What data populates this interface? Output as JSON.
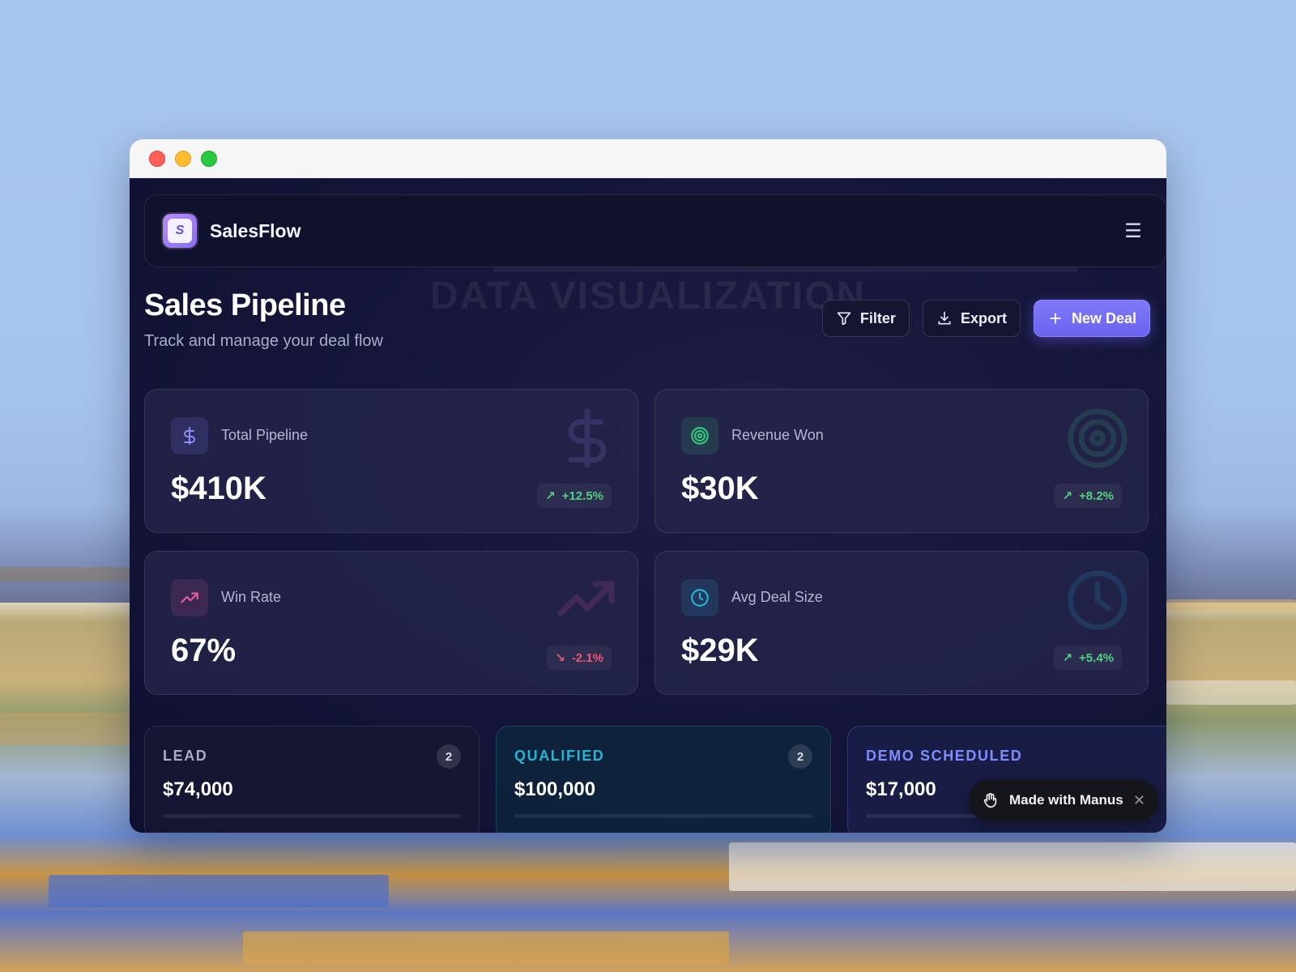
{
  "app": {
    "brand": "SalesFlow",
    "logo_glyph": "S"
  },
  "header": {
    "title": "Sales Pipeline",
    "subtitle": "Track and manage your deal flow",
    "background_text": "DATA VISUALIZATION"
  },
  "toolbar": {
    "filter_label": "Filter",
    "export_label": "Export",
    "new_deal_label": "New Deal"
  },
  "metrics": [
    {
      "label": "Total Pipeline",
      "value": "$410K",
      "delta": "+12.5%",
      "trend": "up",
      "icon": "dollar-icon",
      "color": "#7c7cf5"
    },
    {
      "label": "Revenue Won",
      "value": "$30K",
      "delta": "+8.2%",
      "trend": "up",
      "icon": "target-icon",
      "color": "#34c77b"
    },
    {
      "label": "Win Rate",
      "value": "67%",
      "delta": "-2.1%",
      "trend": "down",
      "icon": "trending-up-icon",
      "color": "#e65b9a"
    },
    {
      "label": "Avg Deal Size",
      "value": "$29K",
      "delta": "+5.4%",
      "trend": "up",
      "icon": "clock-icon",
      "color": "#22b5d6"
    }
  ],
  "stages": [
    {
      "name": "LEAD",
      "count": "2",
      "amount": "$74,000",
      "color": "#a9acc9"
    },
    {
      "name": "QUALIFIED",
      "count": "2",
      "amount": "$100,000",
      "color": "#22b5d6"
    },
    {
      "name": "DEMO SCHEDULED",
      "count": "",
      "amount": "$17,000",
      "color": "#7f8cff"
    }
  ],
  "toast": {
    "label": "Made with Manus",
    "close": "✕"
  },
  "colors": {
    "accent": "#6b63f0",
    "positive": "#4fd37f",
    "negative": "#f05872"
  }
}
